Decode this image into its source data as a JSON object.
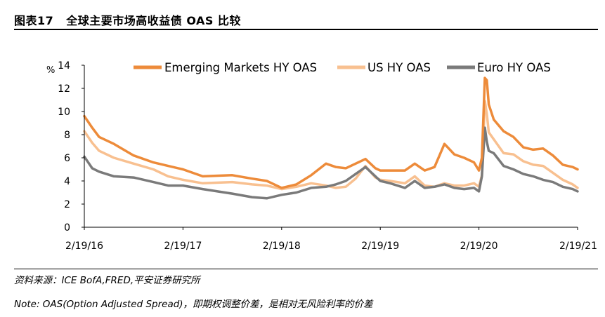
{
  "header": {
    "figure_number": "图表17",
    "title": "全球主要市场高收益债 OAS 比较"
  },
  "footer": {
    "source": "资料来源：ICE BofA,FRED,平安证券研究所",
    "note": "Note: OAS(Option Adjusted Spread)，即期权调整价差，是相对无风险利率的价差"
  },
  "chart_data": {
    "type": "line",
    "ylabel": "%",
    "ylim": [
      0,
      14
    ],
    "yticks": [
      "0",
      "2",
      "4",
      "6",
      "8",
      "10",
      "12",
      "14"
    ],
    "x_tick_labels": [
      "2/19/16",
      "2/19/17",
      "2/19/18",
      "2/19/19",
      "2/19/20",
      "2/19/21"
    ],
    "xlim": [
      0,
      5
    ],
    "series": [
      {
        "name": "Emerging Markets HY OAS",
        "color": "#ED8B3A",
        "x": [
          0,
          0.08,
          0.15,
          0.3,
          0.5,
          0.7,
          0.85,
          1.0,
          1.2,
          1.5,
          1.7,
          1.85,
          2.0,
          2.15,
          2.3,
          2.45,
          2.55,
          2.65,
          2.75,
          2.85,
          2.95,
          3.0,
          3.1,
          3.25,
          3.35,
          3.45,
          3.55,
          3.65,
          3.75,
          3.85,
          3.95,
          4.0,
          4.03,
          4.06,
          4.08,
          4.1,
          4.15,
          4.25,
          4.35,
          4.45,
          4.55,
          4.65,
          4.75,
          4.85,
          4.95,
          5.0
        ],
        "y": [
          9.6,
          8.6,
          7.8,
          7.2,
          6.2,
          5.6,
          5.3,
          5.0,
          4.4,
          4.5,
          4.2,
          4.0,
          3.4,
          3.7,
          4.5,
          5.5,
          5.2,
          5.1,
          5.5,
          5.9,
          5.1,
          4.9,
          4.9,
          4.9,
          5.5,
          4.9,
          5.2,
          7.2,
          6.3,
          6.0,
          5.6,
          4.9,
          6.0,
          12.9,
          12.7,
          10.6,
          9.3,
          8.3,
          7.8,
          6.9,
          6.7,
          6.8,
          6.2,
          5.4,
          5.2,
          5.0
        ]
      },
      {
        "name": "US HY OAS",
        "color": "#F8C090",
        "x": [
          0,
          0.08,
          0.15,
          0.3,
          0.5,
          0.7,
          0.85,
          1.0,
          1.2,
          1.5,
          1.7,
          1.85,
          2.0,
          2.15,
          2.3,
          2.45,
          2.55,
          2.65,
          2.75,
          2.85,
          2.95,
          3.0,
          3.1,
          3.25,
          3.35,
          3.45,
          3.55,
          3.65,
          3.75,
          3.85,
          3.95,
          4.0,
          4.03,
          4.06,
          4.08,
          4.1,
          4.15,
          4.25,
          4.35,
          4.45,
          4.55,
          4.65,
          4.75,
          4.85,
          4.95,
          5.0
        ],
        "y": [
          8.3,
          7.3,
          6.6,
          6.0,
          5.5,
          5.0,
          4.4,
          4.1,
          3.8,
          3.9,
          3.7,
          3.6,
          3.3,
          3.5,
          3.8,
          3.6,
          3.4,
          3.5,
          4.2,
          5.3,
          4.3,
          4.1,
          4.0,
          3.8,
          4.4,
          3.6,
          3.5,
          3.8,
          3.6,
          3.6,
          3.8,
          3.5,
          4.5,
          10.9,
          9.8,
          8.2,
          7.6,
          6.4,
          6.3,
          5.7,
          5.4,
          5.3,
          4.7,
          4.1,
          3.7,
          3.4
        ]
      },
      {
        "name": "Euro HY OAS",
        "color": "#7A7A7A",
        "x": [
          0,
          0.08,
          0.15,
          0.3,
          0.5,
          0.7,
          0.85,
          1.0,
          1.2,
          1.5,
          1.7,
          1.85,
          2.0,
          2.15,
          2.3,
          2.45,
          2.55,
          2.65,
          2.75,
          2.85,
          2.95,
          3.0,
          3.1,
          3.25,
          3.35,
          3.45,
          3.55,
          3.65,
          3.75,
          3.85,
          3.95,
          4.0,
          4.03,
          4.06,
          4.08,
          4.1,
          4.15,
          4.25,
          4.35,
          4.45,
          4.55,
          4.65,
          4.75,
          4.85,
          4.95,
          5.0
        ],
        "y": [
          6.1,
          5.1,
          4.8,
          4.4,
          4.3,
          3.9,
          3.6,
          3.6,
          3.3,
          2.9,
          2.6,
          2.5,
          2.8,
          3.0,
          3.4,
          3.5,
          3.7,
          4.0,
          4.6,
          5.2,
          4.4,
          4.0,
          3.8,
          3.4,
          4.0,
          3.4,
          3.5,
          3.7,
          3.4,
          3.3,
          3.4,
          3.1,
          4.4,
          8.6,
          7.4,
          6.6,
          6.4,
          5.3,
          5.0,
          4.6,
          4.4,
          4.1,
          3.9,
          3.5,
          3.3,
          3.1
        ]
      }
    ]
  }
}
